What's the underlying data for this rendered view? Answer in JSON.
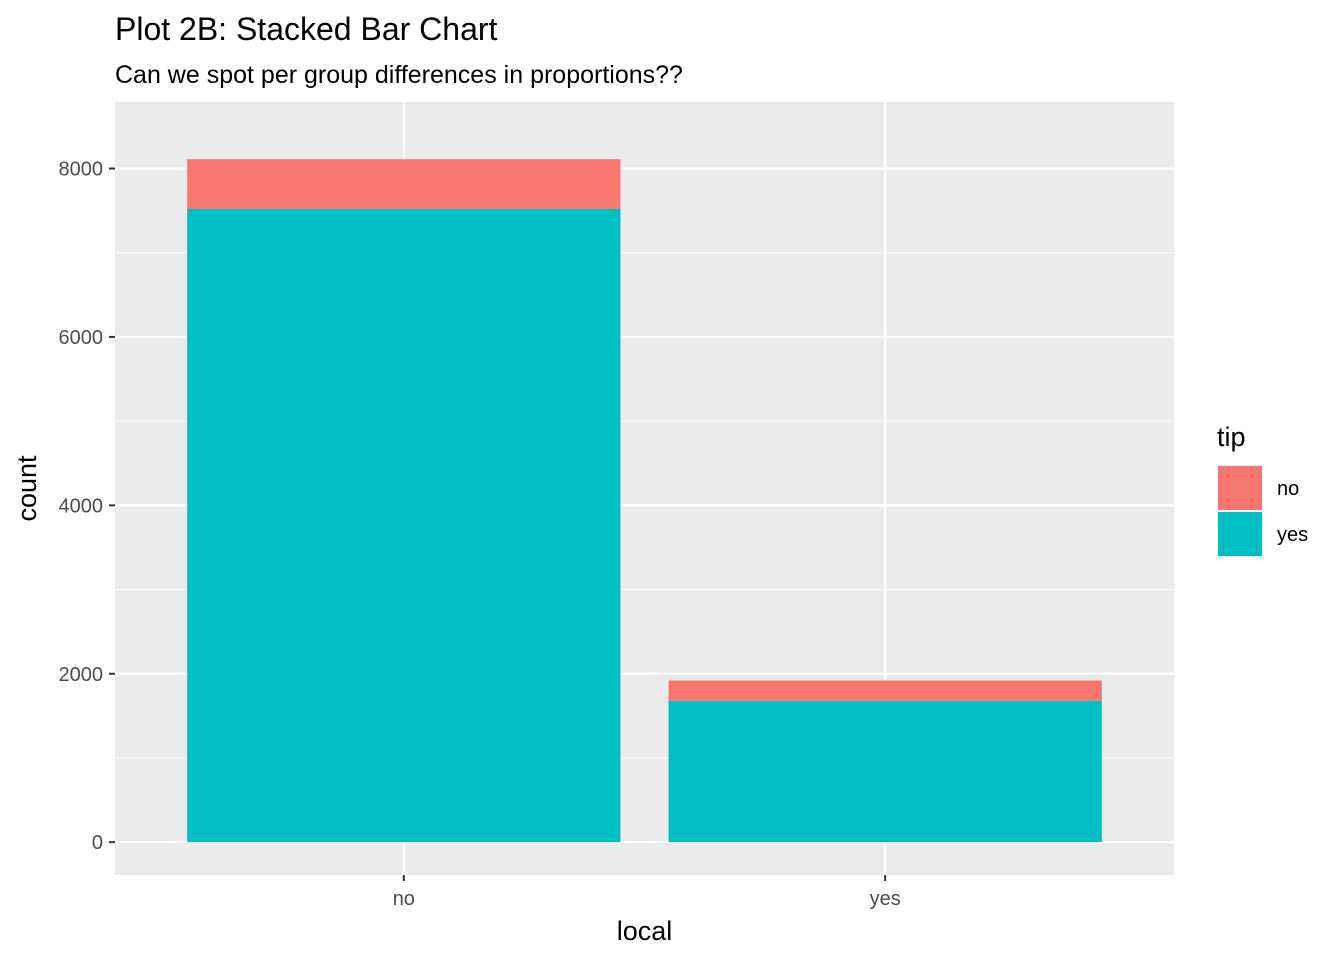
{
  "chart_data": {
    "type": "bar",
    "stacked": true,
    "title": "Plot 2B: Stacked Bar Chart",
    "subtitle": "Can we spot per group differences in proportions??",
    "xlabel": "local",
    "ylabel": "count",
    "categories": [
      "no",
      "yes"
    ],
    "series": [
      {
        "name": "no",
        "color": "#F8766D",
        "values": [
          590,
          240
        ]
      },
      {
        "name": "yes",
        "color": "#00BFC4",
        "values": [
          7520,
          1680
        ]
      }
    ],
    "ylim": [
      -390,
      8790
    ],
    "yticks": [
      0,
      2000,
      4000,
      6000,
      8000
    ],
    "ytick_labels": [
      "0",
      "2000",
      "4000",
      "6000",
      "8000"
    ],
    "grid": true,
    "legend": {
      "title": "tip",
      "position": "right",
      "entries": [
        "no",
        "yes"
      ]
    }
  }
}
